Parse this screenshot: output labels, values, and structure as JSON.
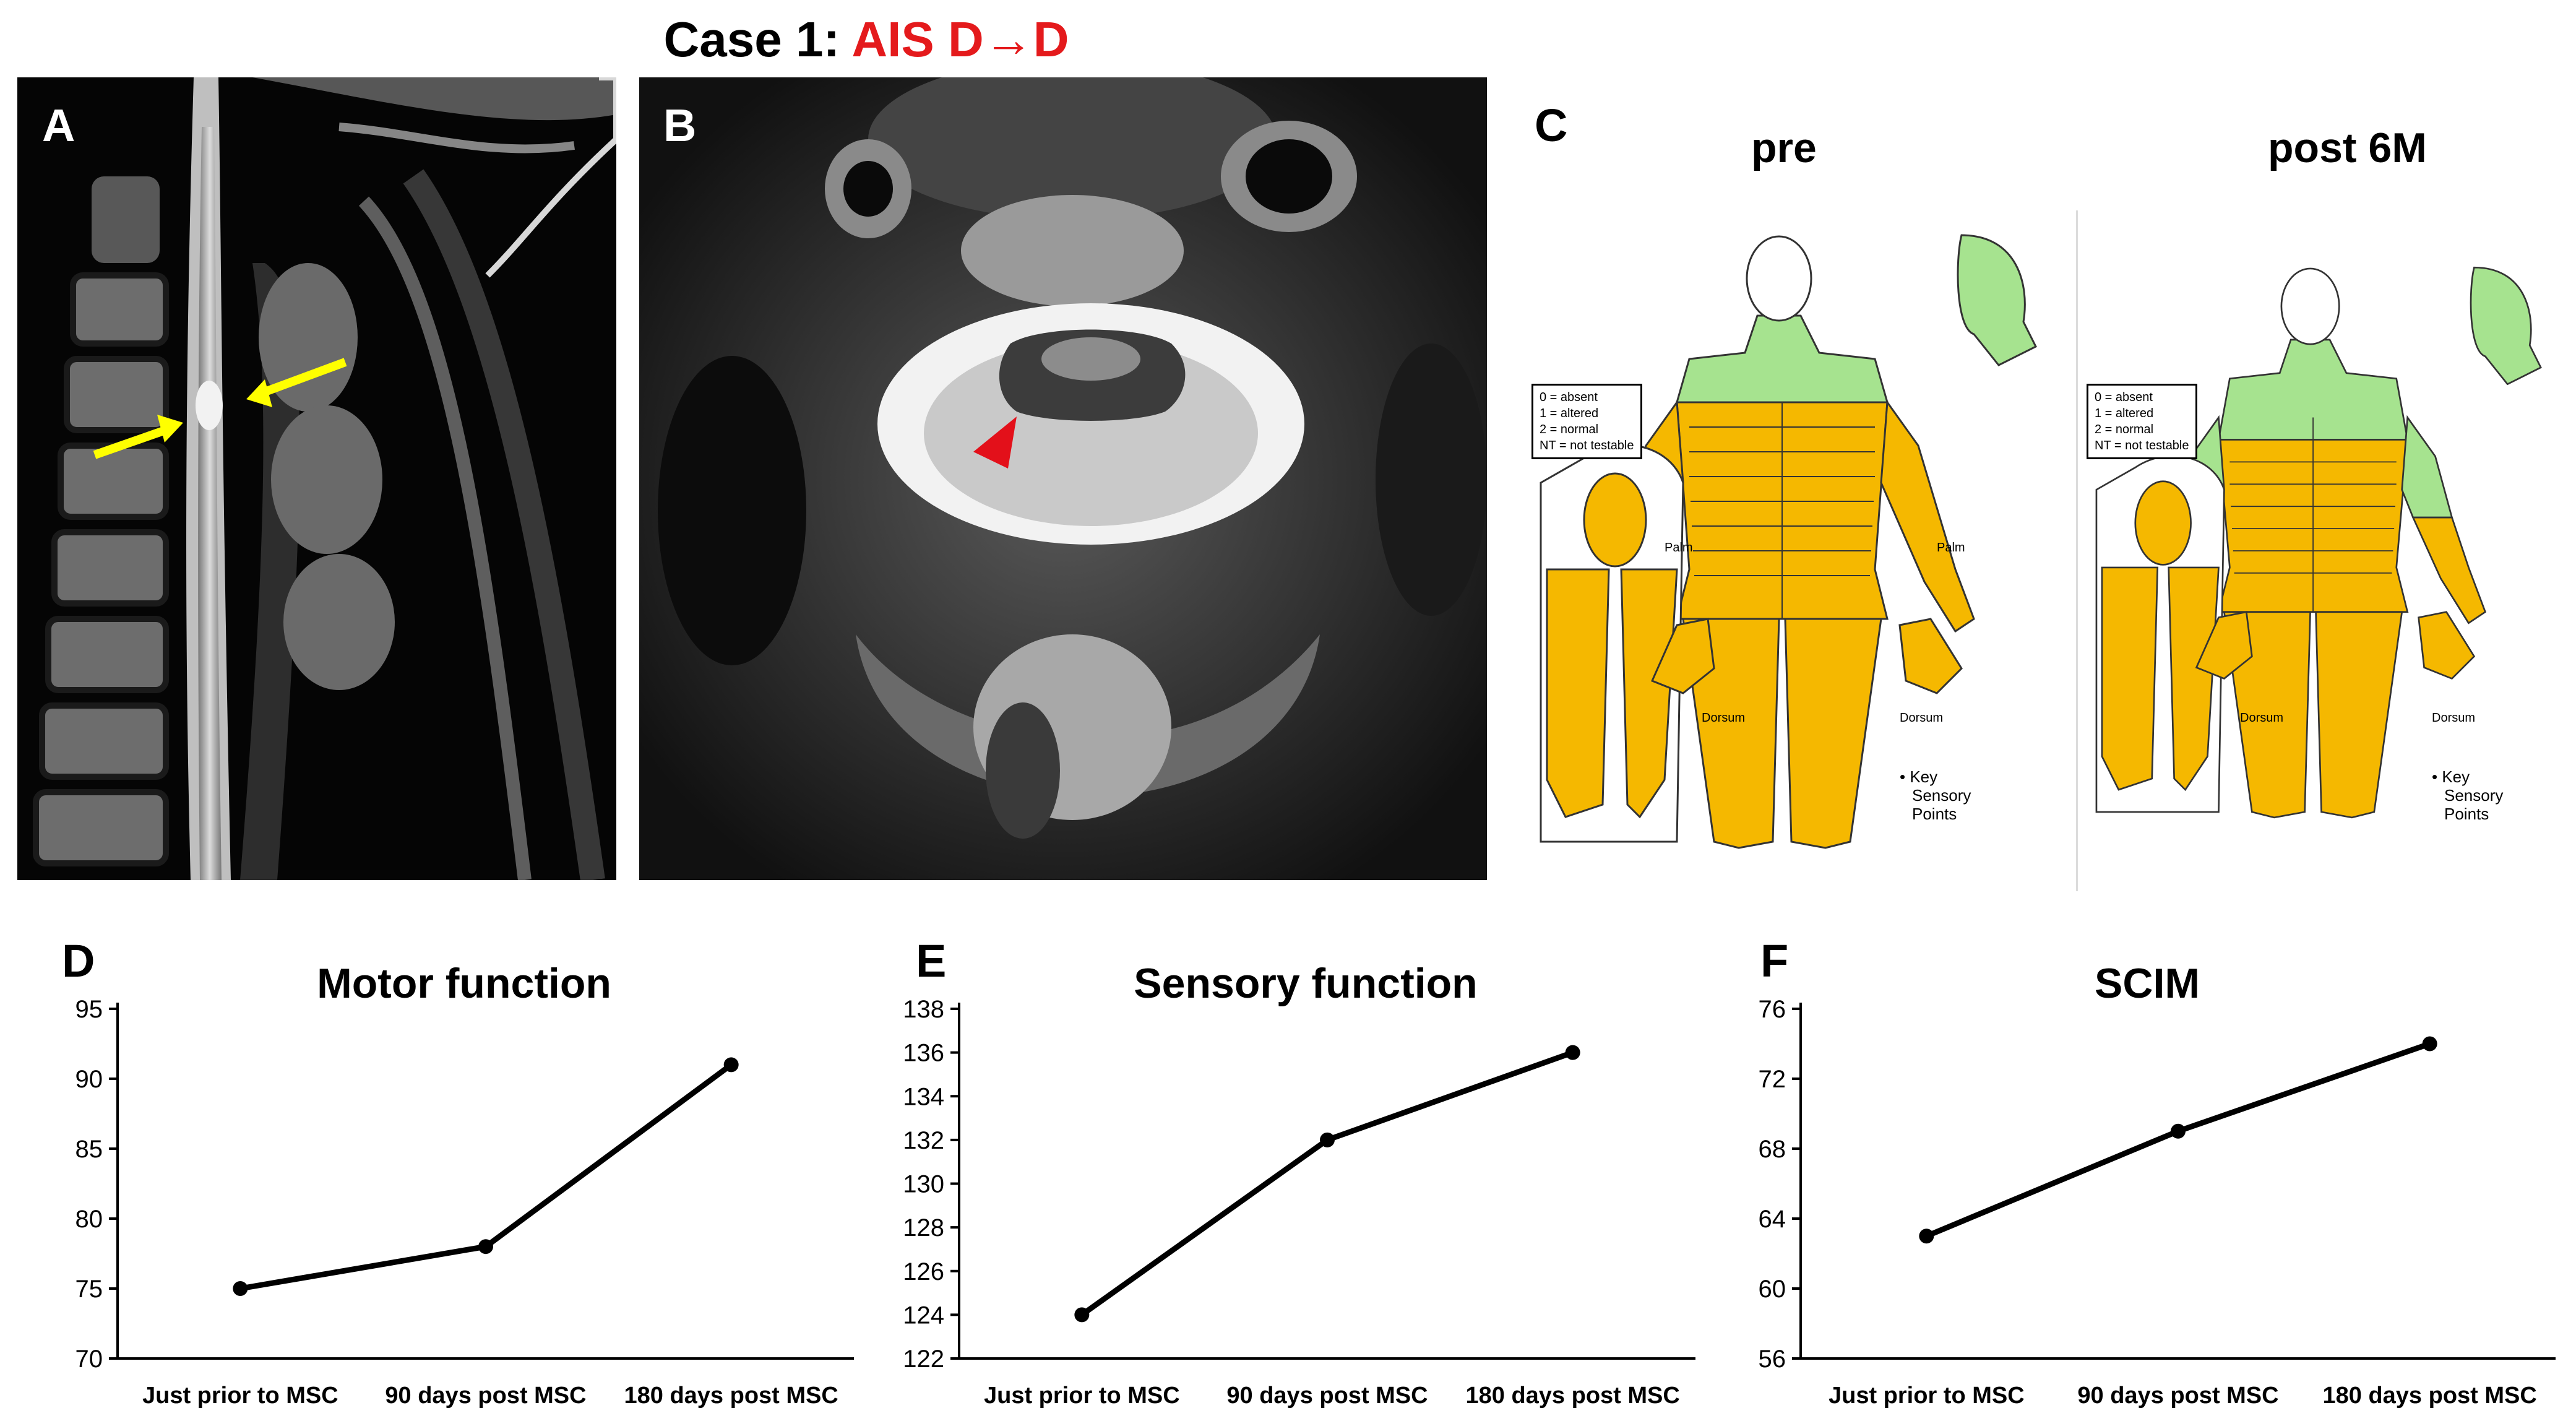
{
  "figure": {
    "title_prefix": "Case 1: ",
    "title_highlight": "AIS D→D",
    "colors": {
      "highlight": "#e41a1c",
      "arrow": "#ffff00",
      "arrowhead": "#e3101a",
      "normal_region": "#a6e38f",
      "altered_region": "#f5b800"
    }
  },
  "panel_a": {
    "letter": "A",
    "image": "sagittal-mri"
  },
  "panel_b": {
    "letter": "B",
    "image": "axial-mri"
  },
  "panel_c": {
    "letter": "C",
    "pre_label": "pre",
    "post_label": "post 6M",
    "legend": [
      "0 = absent",
      "1 = altered",
      "2 = normal",
      "NT = not testable"
    ],
    "key_points": [
      "Key",
      "Sensory",
      "Points"
    ],
    "palm": "Palm",
    "dorsum": "Dorsum"
  },
  "chart_data": [
    {
      "panel": "D",
      "type": "line",
      "title": "Motor function",
      "categories": [
        "Just prior to MSC",
        "90 days post MSC",
        "180 days post MSC"
      ],
      "values": [
        75,
        78,
        91
      ],
      "ylim": [
        70,
        95
      ],
      "yticks": [
        70,
        75,
        80,
        85,
        90,
        95
      ],
      "xlabel": "",
      "ylabel": ""
    },
    {
      "panel": "E",
      "type": "line",
      "title": "Sensory function",
      "categories": [
        "Just prior to MSC",
        "90 days post MSC",
        "180 days post MSC"
      ],
      "values": [
        124,
        132,
        136
      ],
      "ylim": [
        122,
        138
      ],
      "yticks": [
        122,
        124,
        126,
        128,
        130,
        132,
        134,
        136,
        138
      ],
      "xlabel": "",
      "ylabel": ""
    },
    {
      "panel": "F",
      "type": "line",
      "title": "SCIM",
      "categories": [
        "Just prior to MSC",
        "90 days post MSC",
        "180 days post MSC"
      ],
      "values": [
        63,
        69,
        74
      ],
      "ylim": [
        56,
        76
      ],
      "yticks": [
        56,
        60,
        64,
        68,
        72,
        76
      ],
      "xlabel": "",
      "ylabel": ""
    }
  ]
}
